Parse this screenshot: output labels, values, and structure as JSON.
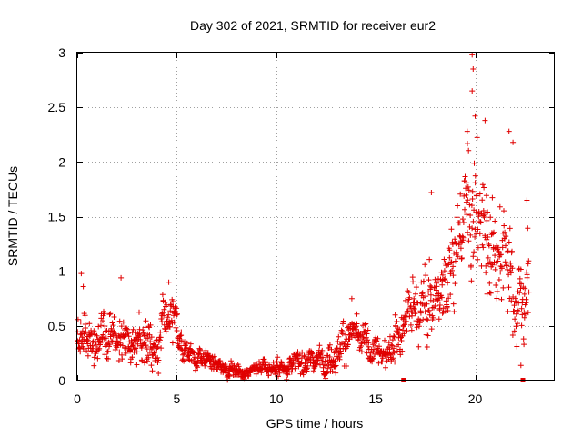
{
  "chart_data": {
    "type": "scatter",
    "title": "Day 302 of 2021, SRMTID for receiver eur2",
    "xlabel": "GPS time / hours",
    "ylabel": "SRMTID / TECUs",
    "xlim": [
      0,
      24
    ],
    "ylim": [
      0,
      3
    ],
    "x_ticks": [
      0,
      5,
      10,
      15,
      20
    ],
    "x_tick_labels": [
      "0",
      "5",
      "10",
      "15",
      "20"
    ],
    "y_ticks": [
      0,
      0.5,
      1,
      1.5,
      2,
      2.5,
      3
    ],
    "y_tick_labels": [
      "0",
      "0.5",
      "1",
      "1.5",
      "2",
      "2.5",
      "3"
    ],
    "grid": true,
    "marker": "+",
    "color": "#e00000",
    "series": [
      {
        "name": "SRMTID",
        "profile": [
          {
            "x": 0.0,
            "y": 0.4,
            "spread": 0.22
          },
          {
            "x": 1.0,
            "y": 0.38,
            "spread": 0.2
          },
          {
            "x": 2.0,
            "y": 0.45,
            "spread": 0.22
          },
          {
            "x": 3.0,
            "y": 0.32,
            "spread": 0.18
          },
          {
            "x": 4.0,
            "y": 0.36,
            "spread": 0.2
          },
          {
            "x": 4.7,
            "y": 0.6,
            "spread": 0.22
          },
          {
            "x": 5.2,
            "y": 0.32,
            "spread": 0.14
          },
          {
            "x": 6.0,
            "y": 0.2,
            "spread": 0.1
          },
          {
            "x": 7.0,
            "y": 0.14,
            "spread": 0.07
          },
          {
            "x": 8.0,
            "y": 0.11,
            "spread": 0.06
          },
          {
            "x": 9.0,
            "y": 0.1,
            "spread": 0.05
          },
          {
            "x": 10.0,
            "y": 0.12,
            "spread": 0.07
          },
          {
            "x": 11.0,
            "y": 0.17,
            "spread": 0.09
          },
          {
            "x": 12.0,
            "y": 0.18,
            "spread": 0.1
          },
          {
            "x": 13.0,
            "y": 0.28,
            "spread": 0.14
          },
          {
            "x": 13.8,
            "y": 0.42,
            "spread": 0.18
          },
          {
            "x": 14.5,
            "y": 0.3,
            "spread": 0.14
          },
          {
            "x": 15.5,
            "y": 0.18,
            "spread": 0.1
          },
          {
            "x": 16.0,
            "y": 0.45,
            "spread": 0.22
          },
          {
            "x": 17.0,
            "y": 0.65,
            "spread": 0.25
          },
          {
            "x": 18.0,
            "y": 0.75,
            "spread": 0.35
          },
          {
            "x": 19.0,
            "y": 1.2,
            "spread": 0.45
          },
          {
            "x": 19.8,
            "y": 1.75,
            "spread": 0.55
          },
          {
            "x": 20.5,
            "y": 1.3,
            "spread": 0.5
          },
          {
            "x": 21.5,
            "y": 1.25,
            "spread": 0.45
          },
          {
            "x": 22.0,
            "y": 0.7,
            "spread": 0.4
          },
          {
            "x": 22.7,
            "y": 1.0,
            "spread": 0.4
          }
        ],
        "extremes": [
          {
            "x": 0.2,
            "y": 0.98
          },
          {
            "x": 0.3,
            "y": 0.86
          },
          {
            "x": 2.2,
            "y": 0.94
          },
          {
            "x": 4.6,
            "y": 0.9
          },
          {
            "x": 13.8,
            "y": 0.75
          },
          {
            "x": 17.8,
            "y": 1.72
          },
          {
            "x": 19.85,
            "y": 2.98
          },
          {
            "x": 19.9,
            "y": 2.85
          },
          {
            "x": 19.85,
            "y": 2.65
          },
          {
            "x": 20.0,
            "y": 2.42
          },
          {
            "x": 20.5,
            "y": 2.38
          },
          {
            "x": 19.6,
            "y": 2.28
          },
          {
            "x": 21.7,
            "y": 2.28
          },
          {
            "x": 21.9,
            "y": 2.18
          },
          {
            "x": 22.6,
            "y": 1.65
          },
          {
            "x": 22.3,
            "y": 0.14
          }
        ],
        "n_points": 1400
      }
    ],
    "marks_at_zero": [
      16.4,
      22.4
    ]
  }
}
